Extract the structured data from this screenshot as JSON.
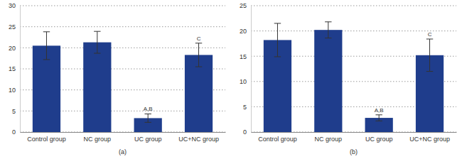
{
  "chart_data": [
    {
      "type": "bar",
      "title": "(a)",
      "categories": [
        "Control group",
        "NC group",
        "UC group",
        "UC+NC group"
      ],
      "values": [
        20.5,
        21.3,
        3.3,
        18.3
      ],
      "errors": [
        3.3,
        2.6,
        1.0,
        2.8
      ],
      "bar_labels": [
        null,
        null,
        "A,B",
        "C"
      ],
      "color": "#1f3d8c",
      "ylim": [
        0,
        30
      ],
      "yticks": [
        0,
        5,
        10,
        15,
        20,
        25,
        30
      ],
      "grid": true
    },
    {
      "type": "bar",
      "title": "(b)",
      "categories": [
        "Control group",
        "NC group",
        "UC group",
        "UC+NC group"
      ],
      "values": [
        18.2,
        20.2,
        2.8,
        15.2
      ],
      "errors": [
        3.3,
        1.6,
        0.6,
        3.2
      ],
      "bar_labels": [
        null,
        null,
        "A,B",
        "C"
      ],
      "color": "#1f3d8c",
      "ylim": [
        0,
        25
      ],
      "yticks": [
        0,
        5,
        10,
        15,
        20,
        25
      ],
      "grid": true
    }
  ]
}
